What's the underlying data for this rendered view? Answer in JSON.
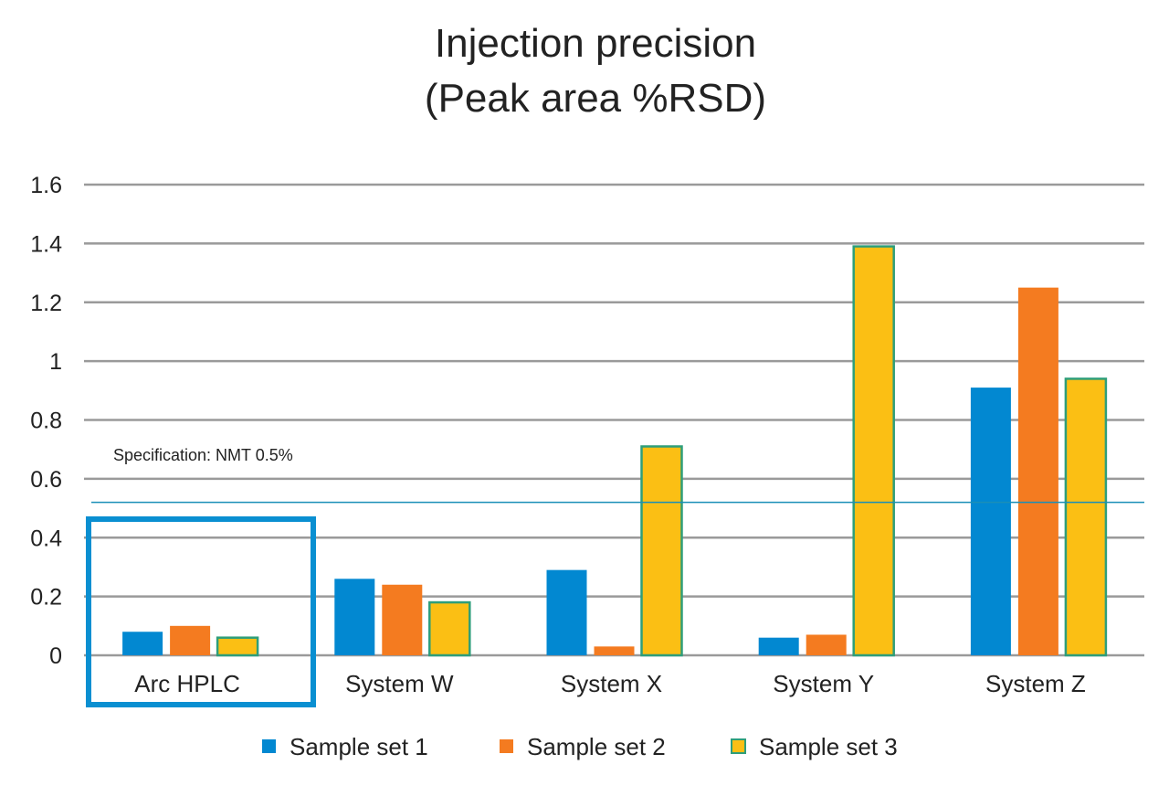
{
  "chart_data": {
    "type": "bar",
    "title": [
      "Injection precision",
      "(Peak area %RSD)"
    ],
    "xlabel": "",
    "ylabel": "",
    "ylim": [
      0,
      1.6
    ],
    "yticks": [
      "0",
      "0.2",
      "0.4",
      "0.6",
      "0.8",
      "1",
      "1.2",
      "1.4",
      "1.6"
    ],
    "grid": true,
    "legend_position": "bottom",
    "categories": [
      "Arc HPLC",
      "System W",
      "System X",
      "System Y",
      "System Z"
    ],
    "series": [
      {
        "name": "Sample set 1",
        "color": "#0288d1",
        "values": [
          0.08,
          0.26,
          0.29,
          0.06,
          0.91
        ]
      },
      {
        "name": "Sample set 2",
        "color": "#f47b20",
        "values": [
          0.1,
          0.24,
          0.03,
          0.07,
          1.25
        ]
      },
      {
        "name": "Sample set 3",
        "color": "#fbbf14",
        "border": "#2e9e7a",
        "values": [
          0.06,
          0.18,
          0.71,
          1.39,
          0.94
        ]
      }
    ],
    "annotations": {
      "specification_label": "Specification: NMT 0.5%",
      "specification_value": 0.52,
      "specification_color": "#1a8fb8",
      "highlighted_category": "Arc HPLC",
      "highlight_color": "#0a8fd1"
    }
  }
}
